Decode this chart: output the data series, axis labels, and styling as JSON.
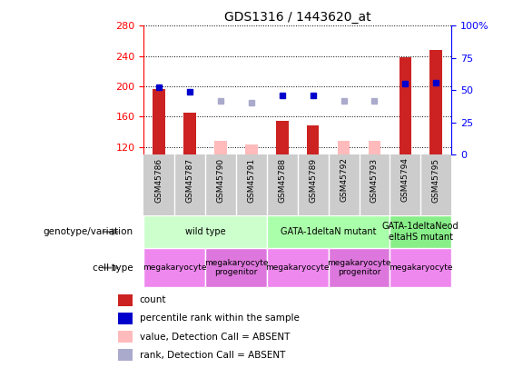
{
  "title": "GDS1316 / 1443620_at",
  "samples": [
    "GSM45786",
    "GSM45787",
    "GSM45790",
    "GSM45791",
    "GSM45788",
    "GSM45789",
    "GSM45792",
    "GSM45793",
    "GSM45794",
    "GSM45795"
  ],
  "count_values": [
    197,
    165,
    null,
    null,
    155,
    148,
    null,
    null,
    238,
    248
  ],
  "count_absent_values": [
    null,
    null,
    128,
    123,
    null,
    null,
    128,
    128,
    null,
    null
  ],
  "percentile_values": [
    52,
    49,
    null,
    null,
    46,
    46,
    null,
    null,
    55,
    56
  ],
  "percentile_absent_values": [
    null,
    null,
    42,
    40,
    null,
    null,
    42,
    42,
    null,
    null
  ],
  "ylim_left": [
    110,
    280
  ],
  "ylim_right": [
    0,
    100
  ],
  "yticks_left": [
    120,
    160,
    200,
    240,
    280
  ],
  "yticks_right": [
    0,
    25,
    50,
    75,
    100
  ],
  "bar_color_present": "#cc2222",
  "bar_color_absent": "#ffbbbb",
  "dot_color_present": "#0000cc",
  "dot_color_absent": "#aaaacc",
  "genotype_groups": [
    {
      "label": "wild type",
      "cols": [
        0,
        1,
        2,
        3
      ],
      "color": "#ccffcc"
    },
    {
      "label": "GATA-1deltaN mutant",
      "cols": [
        4,
        5,
        6,
        7
      ],
      "color": "#aaffaa"
    },
    {
      "label": "GATA-1deltaNeod\neltaHS mutant",
      "cols": [
        8,
        9
      ],
      "color": "#88ee88"
    }
  ],
  "cell_type_groups": [
    {
      "label": "megakaryocyte",
      "cols": [
        0,
        1
      ],
      "color": "#ee88ee"
    },
    {
      "label": "megakaryocyte\nprogenitor",
      "cols": [
        2,
        3
      ],
      "color": "#dd77dd"
    },
    {
      "label": "megakaryocyte",
      "cols": [
        4,
        5
      ],
      "color": "#ee88ee"
    },
    {
      "label": "megakaryocyte\nprogenitor",
      "cols": [
        6,
        7
      ],
      "color": "#dd77dd"
    },
    {
      "label": "megakaryocyte",
      "cols": [
        8,
        9
      ],
      "color": "#ee88ee"
    }
  ],
  "legend_items": [
    {
      "label": "count",
      "color": "#cc2222"
    },
    {
      "label": "percentile rank within the sample",
      "color": "#0000cc"
    },
    {
      "label": "value, Detection Call = ABSENT",
      "color": "#ffbbbb"
    },
    {
      "label": "rank, Detection Call = ABSENT",
      "color": "#aaaacc"
    }
  ],
  "header_bg": "#cccccc",
  "genotype_label": "genotype/variation",
  "cell_type_label": "cell type",
  "bar_width": 0.4
}
